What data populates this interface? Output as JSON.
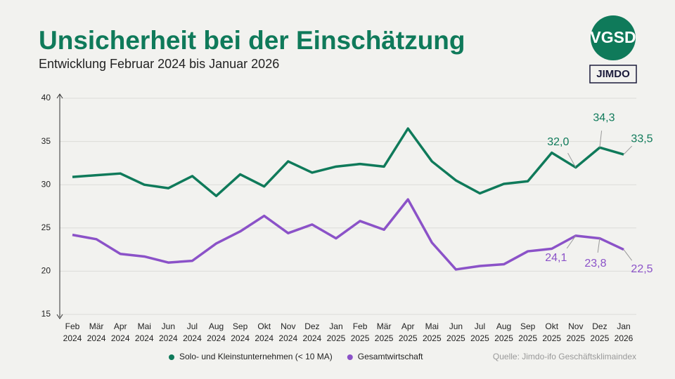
{
  "chart_data": {
    "type": "line",
    "title": "Unsicherheit bei der Einschätzung",
    "subtitle": "Entwicklung Februar 2024 bis Januar 2026",
    "source": "Quelle: Jimdo-ifo Geschäftsklimaindex",
    "logos": [
      "VGSD",
      "JIMDO"
    ],
    "categories": [
      "Feb 2024",
      "Mär 2024",
      "Apr 2024",
      "Mai 2024",
      "Jun 2024",
      "Jul 2024",
      "Aug 2024",
      "Sep 2024",
      "Okt 2024",
      "Nov 2024",
      "Dez 2024",
      "Jan 2025",
      "Feb 2025",
      "Mär 2025",
      "Apr 2025",
      "Mai 2025",
      "Jun 2025",
      "Jul 2025",
      "Aug 2025",
      "Sep 2025",
      "Okt 2025",
      "Nov 2025",
      "Dez 2025",
      "Jan 2026"
    ],
    "series": [
      {
        "name": "Solo- und Kleinstunternehmen (< 10 MA)",
        "color": "#0f7a5a",
        "values": [
          30.9,
          31.1,
          31.3,
          30.0,
          29.6,
          31.0,
          28.7,
          31.2,
          29.8,
          32.7,
          31.4,
          32.1,
          32.4,
          32.1,
          36.5,
          32.7,
          30.5,
          29.0,
          30.1,
          30.4,
          33.7,
          32.0,
          34.3,
          33.5
        ],
        "value_labels": [
          null,
          null,
          null,
          null,
          null,
          null,
          null,
          null,
          null,
          null,
          null,
          null,
          null,
          null,
          null,
          null,
          null,
          null,
          null,
          null,
          null,
          "32,0",
          "34,3",
          "33,5"
        ]
      },
      {
        "name": "Gesamtwirtschaft",
        "color": "#8b52c8",
        "values": [
          24.2,
          23.7,
          22.0,
          21.7,
          21.0,
          21.2,
          23.2,
          24.6,
          26.4,
          24.4,
          25.4,
          23.8,
          25.8,
          24.8,
          28.3,
          23.3,
          20.2,
          20.6,
          20.8,
          22.3,
          22.6,
          24.1,
          23.8,
          22.5
        ],
        "value_labels": [
          null,
          null,
          null,
          null,
          null,
          null,
          null,
          null,
          null,
          null,
          null,
          null,
          null,
          null,
          null,
          null,
          null,
          null,
          null,
          null,
          null,
          "24,1",
          "23,8",
          "22,5"
        ]
      }
    ],
    "ylim": [
      15,
      40
    ],
    "yticks": [
      15,
      20,
      25,
      30,
      35,
      40
    ],
    "grid": true
  }
}
